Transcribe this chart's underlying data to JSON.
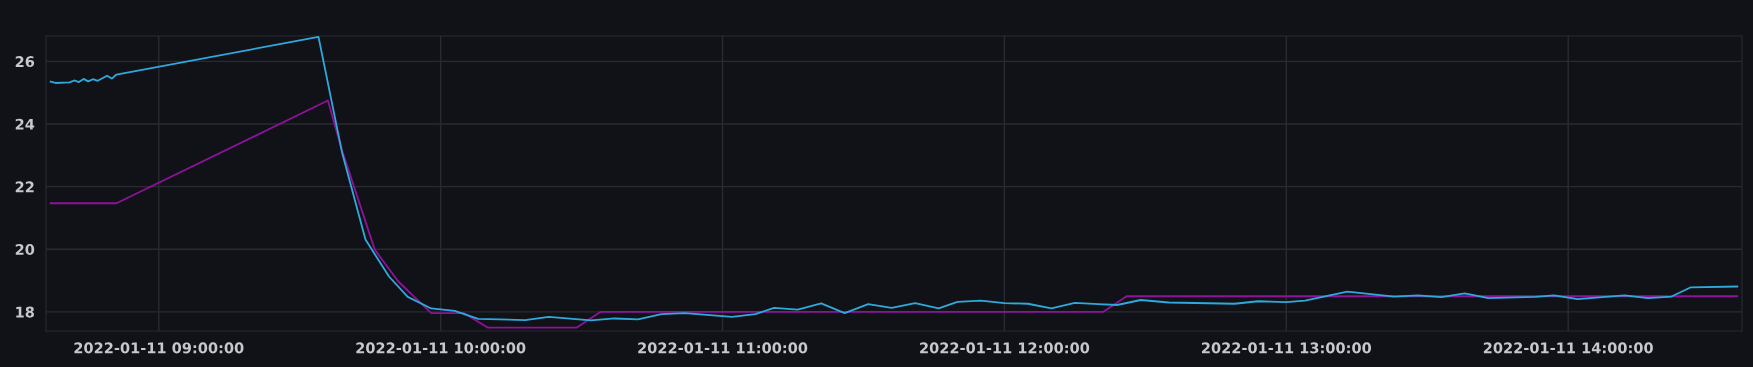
{
  "chart_data": {
    "type": "line",
    "xlim": [
      "2022-01-11T08:36",
      "2022-01-11T14:37"
    ],
    "xticks": [
      {
        "value": "2022-01-11T09:00",
        "label": "2022-01-11 09:00:00"
      },
      {
        "value": "2022-01-11T10:00",
        "label": "2022-01-11 10:00:00"
      },
      {
        "value": "2022-01-11T11:00",
        "label": "2022-01-11 11:00:00"
      },
      {
        "value": "2022-01-11T12:00",
        "label": "2022-01-11 12:00:00"
      },
      {
        "value": "2022-01-11T13:00",
        "label": "2022-01-11 13:00:00"
      },
      {
        "value": "2022-01-11T14:00",
        "label": "2022-01-11 14:00:00"
      }
    ],
    "ylim": [
      17.39,
      26.81
    ],
    "yticks": [
      18,
      20,
      22,
      24,
      26
    ],
    "grid": true,
    "marker": "none",
    "line_style": "solid",
    "series": [
      {
        "color": "#2fa9dc",
        "x": [
          "2022-01-11T08:37",
          "2022-01-11T08:38",
          "2022-01-11T08:41",
          "2022-01-11T08:42",
          "2022-01-11T08:43",
          "2022-01-11T08:44",
          "2022-01-11T08:45",
          "2022-01-11T08:46",
          "2022-01-11T08:47",
          "2022-01-11T08:49",
          "2022-01-11T08:50",
          "2022-01-11T08:51",
          "2022-01-11T09:34",
          "2022-01-11T09:39",
          "2022-01-11T09:44",
          "2022-01-11T09:49",
          "2022-01-11T09:53",
          "2022-01-11T09:58",
          "2022-01-11T10:03",
          "2022-01-11T10:08",
          "2022-01-11T10:18",
          "2022-01-11T10:23",
          "2022-01-11T10:32",
          "2022-01-11T10:37",
          "2022-01-11T10:42",
          "2022-01-11T10:47",
          "2022-01-11T10:52",
          "2022-01-11T11:02",
          "2022-01-11T11:07",
          "2022-01-11T11:11",
          "2022-01-11T11:16",
          "2022-01-11T11:21",
          "2022-01-11T11:26",
          "2022-01-11T11:31",
          "2022-01-11T11:36",
          "2022-01-11T11:41",
          "2022-01-11T11:46",
          "2022-01-11T11:50",
          "2022-01-11T11:55",
          "2022-01-11T12:00",
          "2022-01-11T12:05",
          "2022-01-11T12:10",
          "2022-01-11T12:15",
          "2022-01-11T12:20",
          "2022-01-11T12:24",
          "2022-01-11T12:29",
          "2022-01-11T12:35",
          "2022-01-11T12:49",
          "2022-01-11T12:54",
          "2022-01-11T13:00",
          "2022-01-11T13:04",
          "2022-01-11T13:13",
          "2022-01-11T13:23",
          "2022-01-11T13:28",
          "2022-01-11T13:33",
          "2022-01-11T13:38",
          "2022-01-11T13:43",
          "2022-01-11T13:53",
          "2022-01-11T13:57",
          "2022-01-11T14:02",
          "2022-01-11T14:12",
          "2022-01-11T14:17",
          "2022-01-11T14:22",
          "2022-01-11T14:26",
          "2022-01-11T14:36"
        ],
        "values": [
          25.35,
          25.31,
          25.33,
          25.39,
          25.34,
          25.44,
          25.36,
          25.43,
          25.38,
          25.54,
          25.45,
          25.58,
          26.78,
          23.1,
          20.31,
          19.13,
          18.48,
          18.11,
          18.03,
          17.78,
          17.74,
          17.84,
          17.73,
          17.79,
          17.76,
          17.93,
          17.96,
          17.84,
          17.93,
          18.13,
          18.07,
          18.27,
          17.96,
          18.25,
          18.13,
          18.28,
          18.11,
          18.32,
          18.36,
          18.28,
          18.26,
          18.11,
          18.29,
          18.25,
          18.22,
          18.38,
          18.3,
          18.26,
          18.34,
          18.31,
          18.36,
          18.65,
          18.49,
          18.53,
          18.47,
          18.59,
          18.44,
          18.48,
          18.53,
          18.41,
          18.53,
          18.44,
          18.49,
          18.78,
          18.81
        ]
      },
      {
        "color": "#8e129c",
        "x": [
          "2022-01-11T08:37",
          "2022-01-11T08:51",
          "2022-01-11T09:36",
          "2022-01-11T09:39",
          "2022-01-11T09:46",
          "2022-01-11T09:51",
          "2022-01-11T09:58",
          "2022-01-11T10:05",
          "2022-01-11T10:10",
          "2022-01-11T10:29",
          "2022-01-11T10:34",
          "2022-01-11T12:21",
          "2022-01-11T12:26",
          "2022-01-11T14:36"
        ],
        "values": [
          21.47,
          21.47,
          24.75,
          23.16,
          19.98,
          18.97,
          17.96,
          17.96,
          17.5,
          17.5,
          18.0,
          18.0,
          18.5,
          18.5
        ]
      }
    ]
  }
}
